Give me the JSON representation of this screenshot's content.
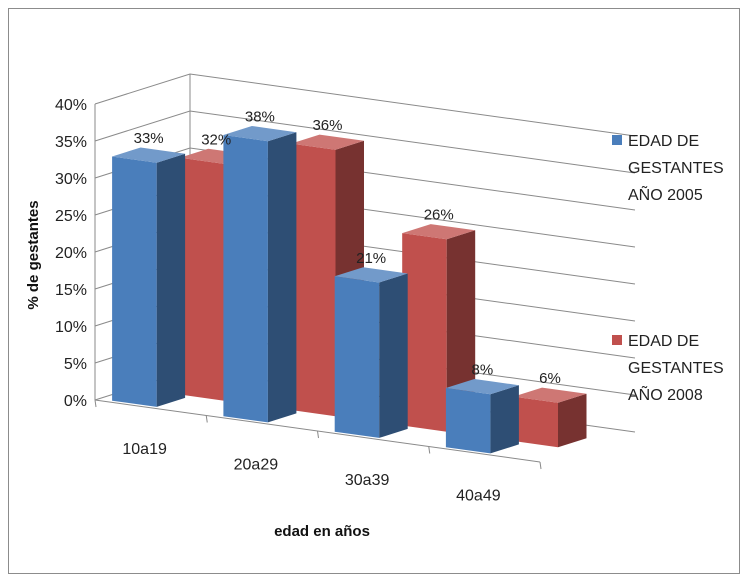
{
  "chart_data": {
    "type": "bar",
    "subtype": "3d-clustered-column",
    "title": "",
    "xlabel": "edad en años",
    "ylabel": "% de gestantes",
    "categories": [
      "10a19",
      "20a29",
      "30a39",
      "40a49"
    ],
    "yticks": [
      "0%",
      "5%",
      "10%",
      "15%",
      "20%",
      "25%",
      "30%",
      "35%",
      "40%"
    ],
    "ylim": [
      0,
      40
    ],
    "grid": true,
    "legend_position": "right",
    "series": [
      {
        "name": "EDAD DE GESTANTES AÑO 2005",
        "legend_lines": [
          "EDAD DE",
          "GESTANTES",
          "AÑO 2005"
        ],
        "color": "#4a7ebb",
        "values": [
          33,
          38,
          21,
          8
        ],
        "labels": [
          "33%",
          "38%",
          "21%",
          "8%"
        ]
      },
      {
        "name": "EDAD DE GESTANTES AÑO 2008",
        "legend_lines": [
          "EDAD DE",
          "GESTANTES",
          "AÑO 2008"
        ],
        "color": "#c0504d",
        "values": [
          32,
          36,
          26,
          6
        ],
        "labels": [
          "32%",
          "36%",
          "26%",
          "6%"
        ]
      }
    ]
  }
}
